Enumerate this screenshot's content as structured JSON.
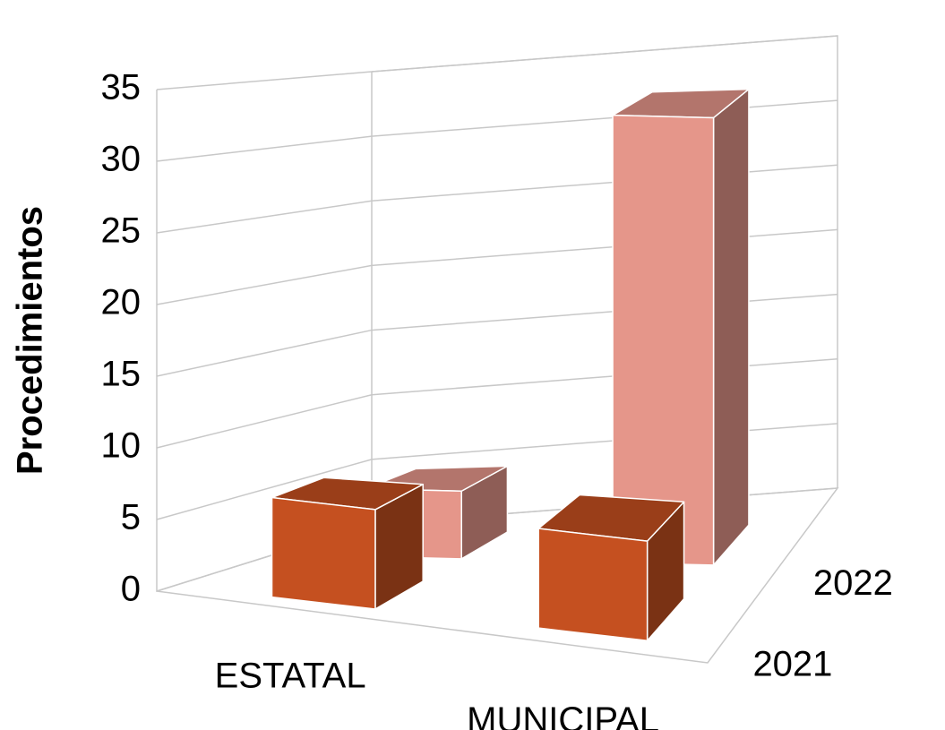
{
  "chart_data": {
    "type": "bar3d",
    "categories": [
      "ESTATAL",
      "MUNICIPAL"
    ],
    "series": [
      {
        "name": "2021",
        "color": "#c55020",
        "values": [
          7,
          7
        ]
      },
      {
        "name": "2022",
        "color": "#e5968a",
        "values": [
          5,
          33
        ]
      }
    ],
    "ylabel": "Procedimientos",
    "ylim": [
      0,
      35
    ],
    "yticks": [
      0,
      5,
      10,
      15,
      20,
      25,
      30,
      35
    ],
    "grid": true
  }
}
